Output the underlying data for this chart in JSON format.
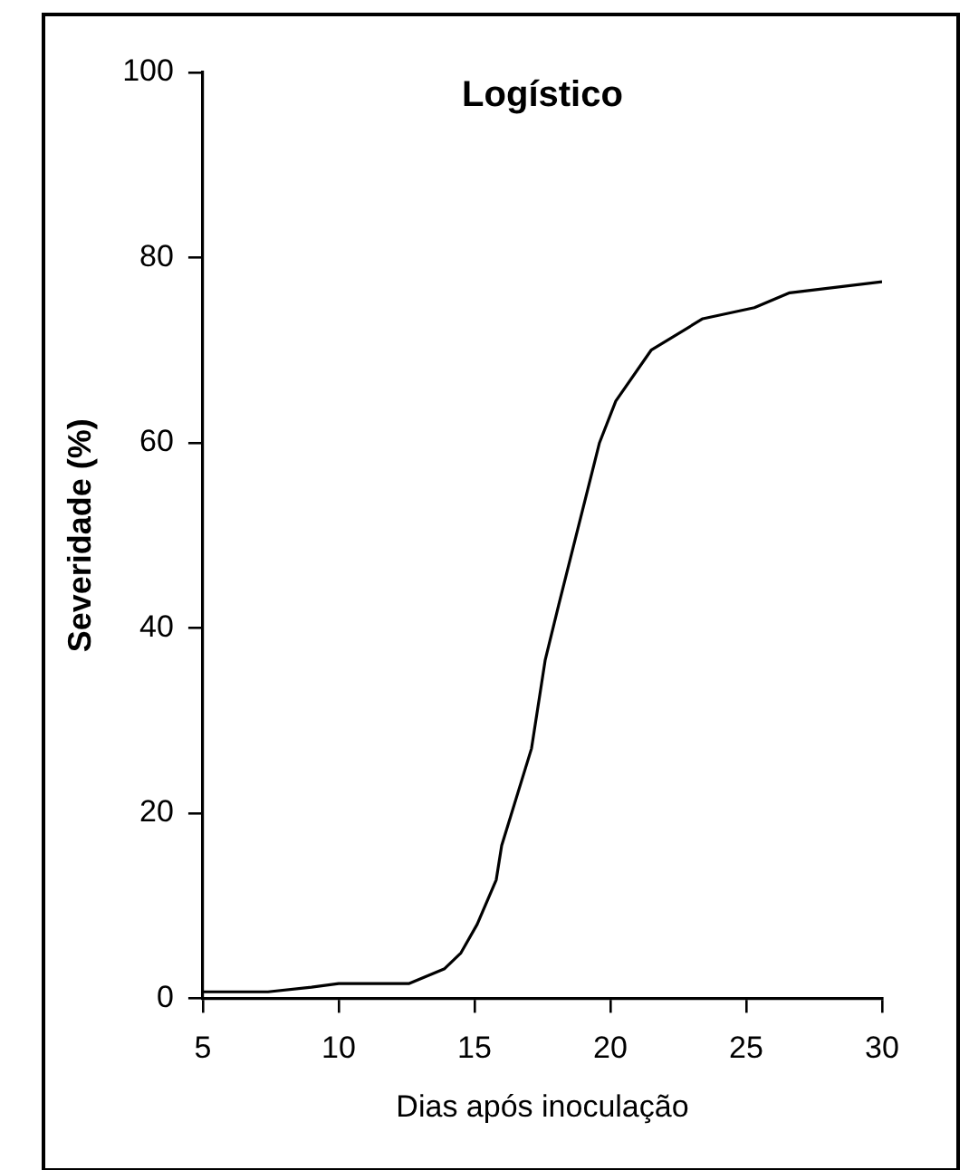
{
  "chart_data": {
    "type": "line",
    "title": "Logístico",
    "xlabel": "Dias após inoculação",
    "ylabel": "Severidade (%)",
    "x": [
      5,
      7.4,
      9,
      10,
      12.6,
      13.9,
      14.5,
      15.1,
      15.8,
      16,
      17.1,
      17.6,
      18.1,
      19.6,
      20.2,
      21.5,
      23.4,
      25.3,
      26.6,
      30
    ],
    "series": [
      {
        "color": "#000000",
        "values": [
          0.7,
          0.7,
          1.2,
          1.6,
          1.6,
          3.2,
          4.9,
          8,
          12.8,
          16.5,
          27,
          36.5,
          42.5,
          60,
          64.5,
          70,
          73.4,
          74.6,
          76.2,
          77.4
        ]
      }
    ],
    "xlim": [
      5,
      30
    ],
    "xticks": [
      5,
      10,
      15,
      20,
      25,
      30
    ],
    "ylim": [
      0,
      100
    ],
    "yticks": [
      0,
      20,
      40,
      60,
      80,
      100
    ],
    "grid": false,
    "legend": false,
    "marker": "none",
    "line_style": "solid"
  }
}
